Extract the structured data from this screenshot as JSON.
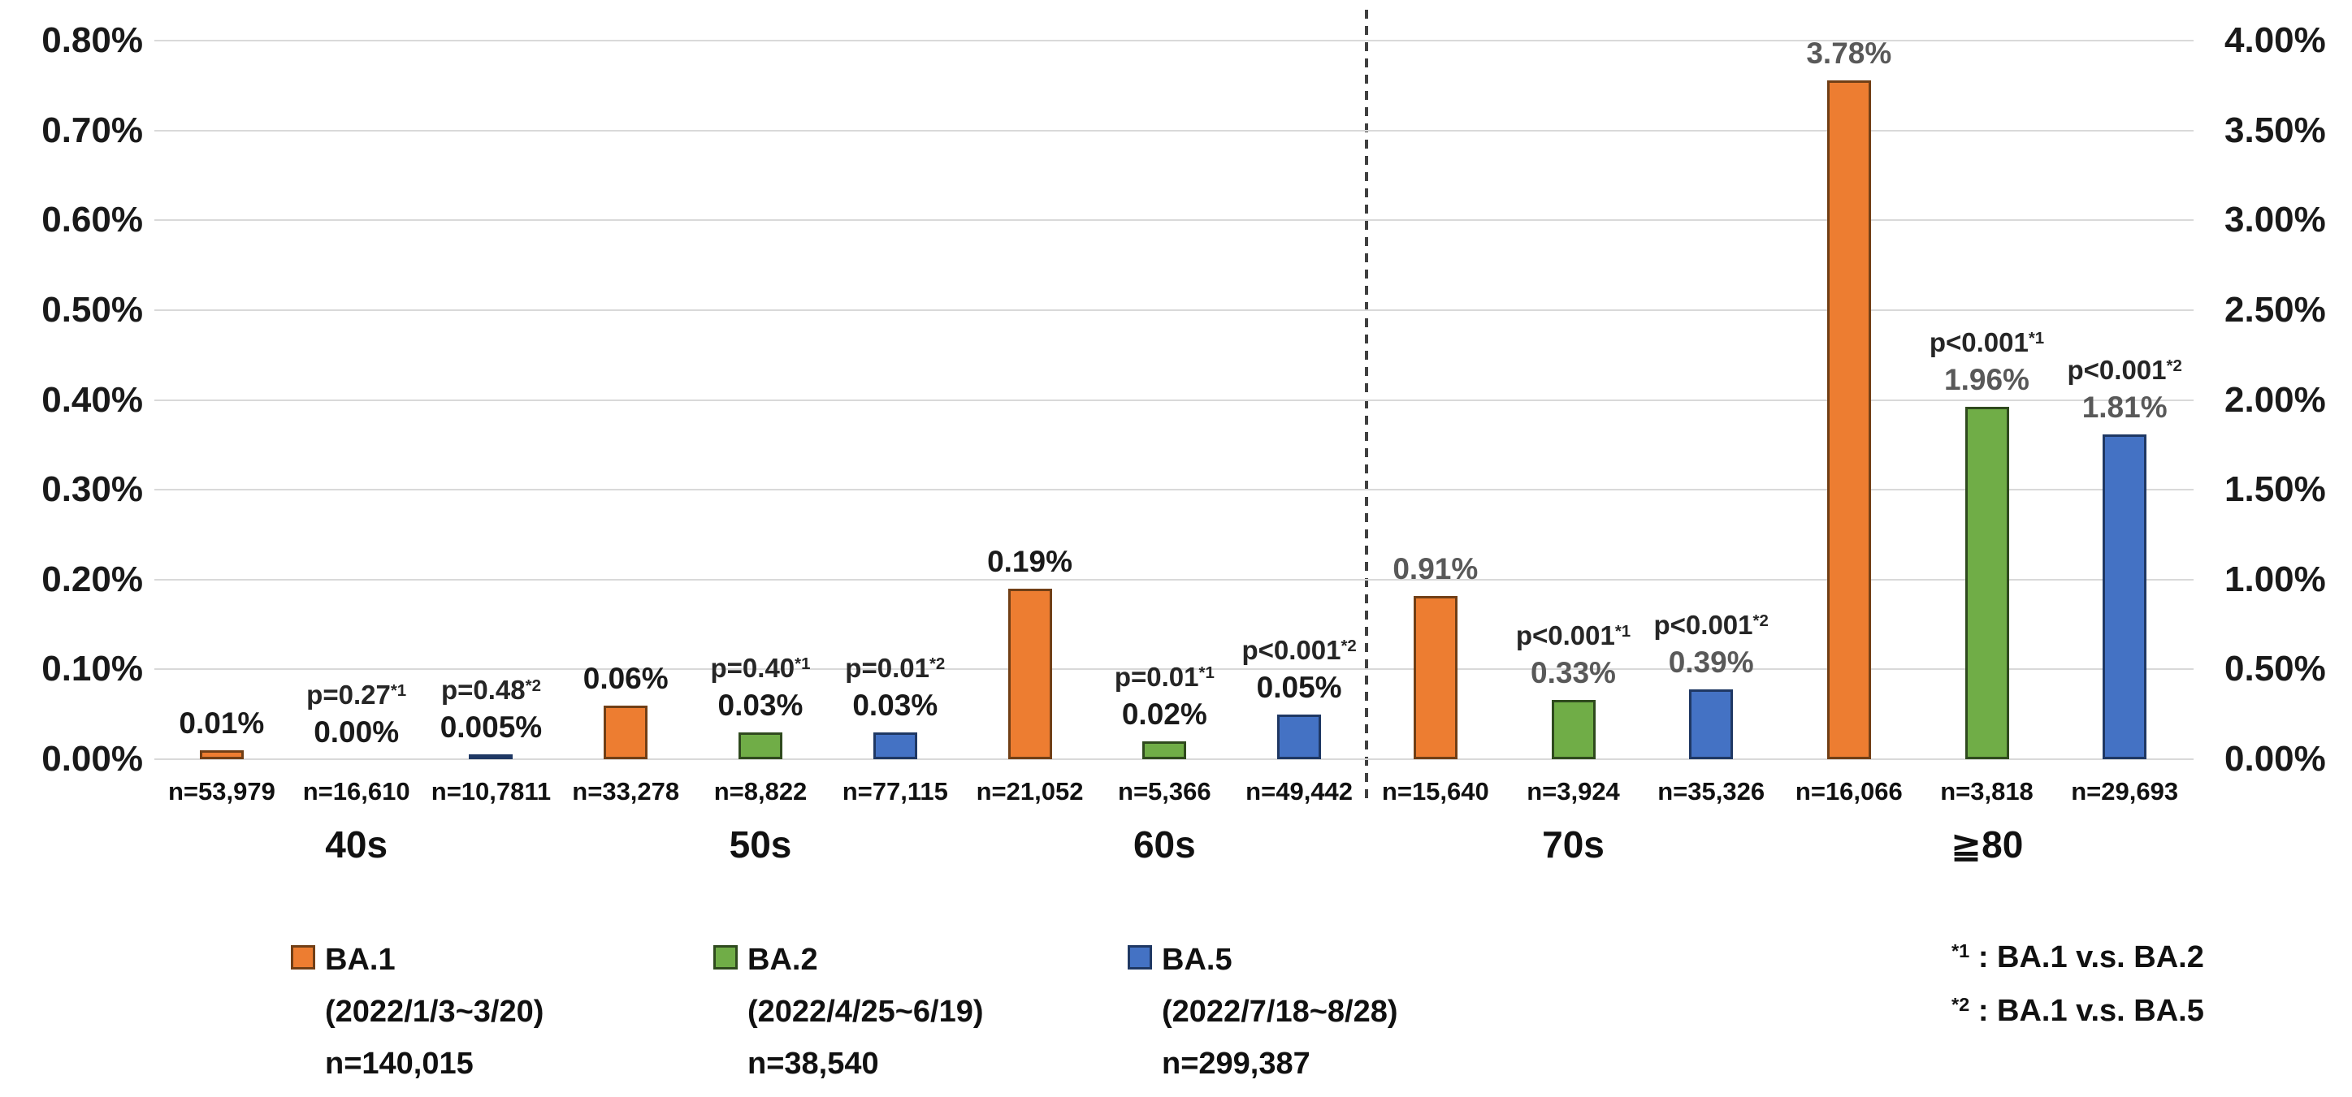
{
  "chart_data": {
    "type": "bar",
    "title": "",
    "left_axis": {
      "max": 0.8,
      "ticks": [
        "0.80%",
        "0.70%",
        "0.60%",
        "0.50%",
        "0.40%",
        "0.30%",
        "0.20%",
        "0.10%",
        "0.00%"
      ]
    },
    "right_axis": {
      "max": 4.0,
      "ticks": [
        "4.00%",
        "3.50%",
        "3.00%",
        "2.50%",
        "2.00%",
        "1.50%",
        "1.00%",
        "0.50%",
        "0.00%"
      ]
    },
    "series_colors": {
      "BA.1": "#ED7D31",
      "BA.2": "#70AD47",
      "BA.5": "#4472C4"
    },
    "series_borders": {
      "BA.1": "#713F16",
      "BA.2": "#2F4A1E",
      "BA.5": "#1F3864"
    },
    "colors": {
      "gridline": "#D9D9D9",
      "separator": "#404040",
      "value_label": "#1A1A1A",
      "value_label_muted": "#595959"
    },
    "groups": [
      {
        "label": "40s",
        "axis": "left",
        "bars": [
          {
            "series": "BA.1",
            "value": 0.01,
            "value_label": "0.01%",
            "n_label": "n=53,979"
          },
          {
            "series": "BA.2",
            "value": 0.0,
            "value_label": "0.00%",
            "p_label": "p=0.27",
            "p_sup": "*1",
            "n_label": "n=16,610"
          },
          {
            "series": "BA.5",
            "value": 0.005,
            "value_label": "0.005%",
            "p_label": "p=0.48",
            "p_sup": "*2",
            "n_label": "n=10,7811"
          }
        ]
      },
      {
        "label": "50s",
        "axis": "left",
        "bars": [
          {
            "series": "BA.1",
            "value": 0.06,
            "value_label": "0.06%",
            "n_label": "n=33,278"
          },
          {
            "series": "BA.2",
            "value": 0.03,
            "value_label": "0.03%",
            "p_label": "p=0.40",
            "p_sup": "*1",
            "n_label": "n=8,822"
          },
          {
            "series": "BA.5",
            "value": 0.03,
            "value_label": "0.03%",
            "p_label": "p=0.01",
            "p_sup": "*2",
            "n_label": "n=77,115"
          }
        ]
      },
      {
        "label": "60s",
        "axis": "left",
        "bars": [
          {
            "series": "BA.1",
            "value": 0.19,
            "value_label": "0.19%",
            "n_label": "n=21,052"
          },
          {
            "series": "BA.2",
            "value": 0.02,
            "value_label": "0.02%",
            "p_label": "p=0.01",
            "p_sup": "*1",
            "n_label": "n=5,366"
          },
          {
            "series": "BA.5",
            "value": 0.05,
            "value_label": "0.05%",
            "p_label": "p<0.001",
            "p_sup": "*2",
            "n_label": "n=49,442"
          }
        ]
      },
      {
        "label": "70s",
        "axis": "right",
        "bars": [
          {
            "series": "BA.1",
            "value": 0.91,
            "value_label": "0.91%",
            "n_label": "n=15,640"
          },
          {
            "series": "BA.2",
            "value": 0.33,
            "value_label": "0.33%",
            "p_label": "p<0.001",
            "p_sup": "*1",
            "n_label": "n=3,924"
          },
          {
            "series": "BA.5",
            "value": 0.39,
            "value_label": "0.39%",
            "p_label": "p<0.001",
            "p_sup": "*2",
            "n_label": "n=35,326"
          }
        ]
      },
      {
        "label": "≧80",
        "axis": "right",
        "bars": [
          {
            "series": "BA.1",
            "value": 3.78,
            "value_label": "3.78%",
            "n_label": "n=16,066"
          },
          {
            "series": "BA.2",
            "value": 1.96,
            "value_label": "1.96%",
            "p_label": "p<0.001",
            "p_sup": "*1",
            "n_label": "n=3,818"
          },
          {
            "series": "BA.5",
            "value": 1.81,
            "value_label": "1.81%",
            "p_label": "p<0.001",
            "p_sup": "*2",
            "n_label": "n=29,693"
          }
        ]
      }
    ],
    "legend": [
      {
        "series": "BA.1",
        "period": "(2022/1/3~3/20)",
        "n": "n=140,015"
      },
      {
        "series": "BA.2",
        "period": "(2022/4/25~6/19)",
        "n": "n=38,540"
      },
      {
        "series": "BA.5",
        "period": "(2022/7/18~8/28)",
        "n": "n=299,387"
      }
    ],
    "footnotes": [
      {
        "sup": "*1",
        "text": " : BA.1 v.s. BA.2"
      },
      {
        "sup": "*2",
        "text": " : BA.1 v.s. BA.5"
      }
    ]
  }
}
